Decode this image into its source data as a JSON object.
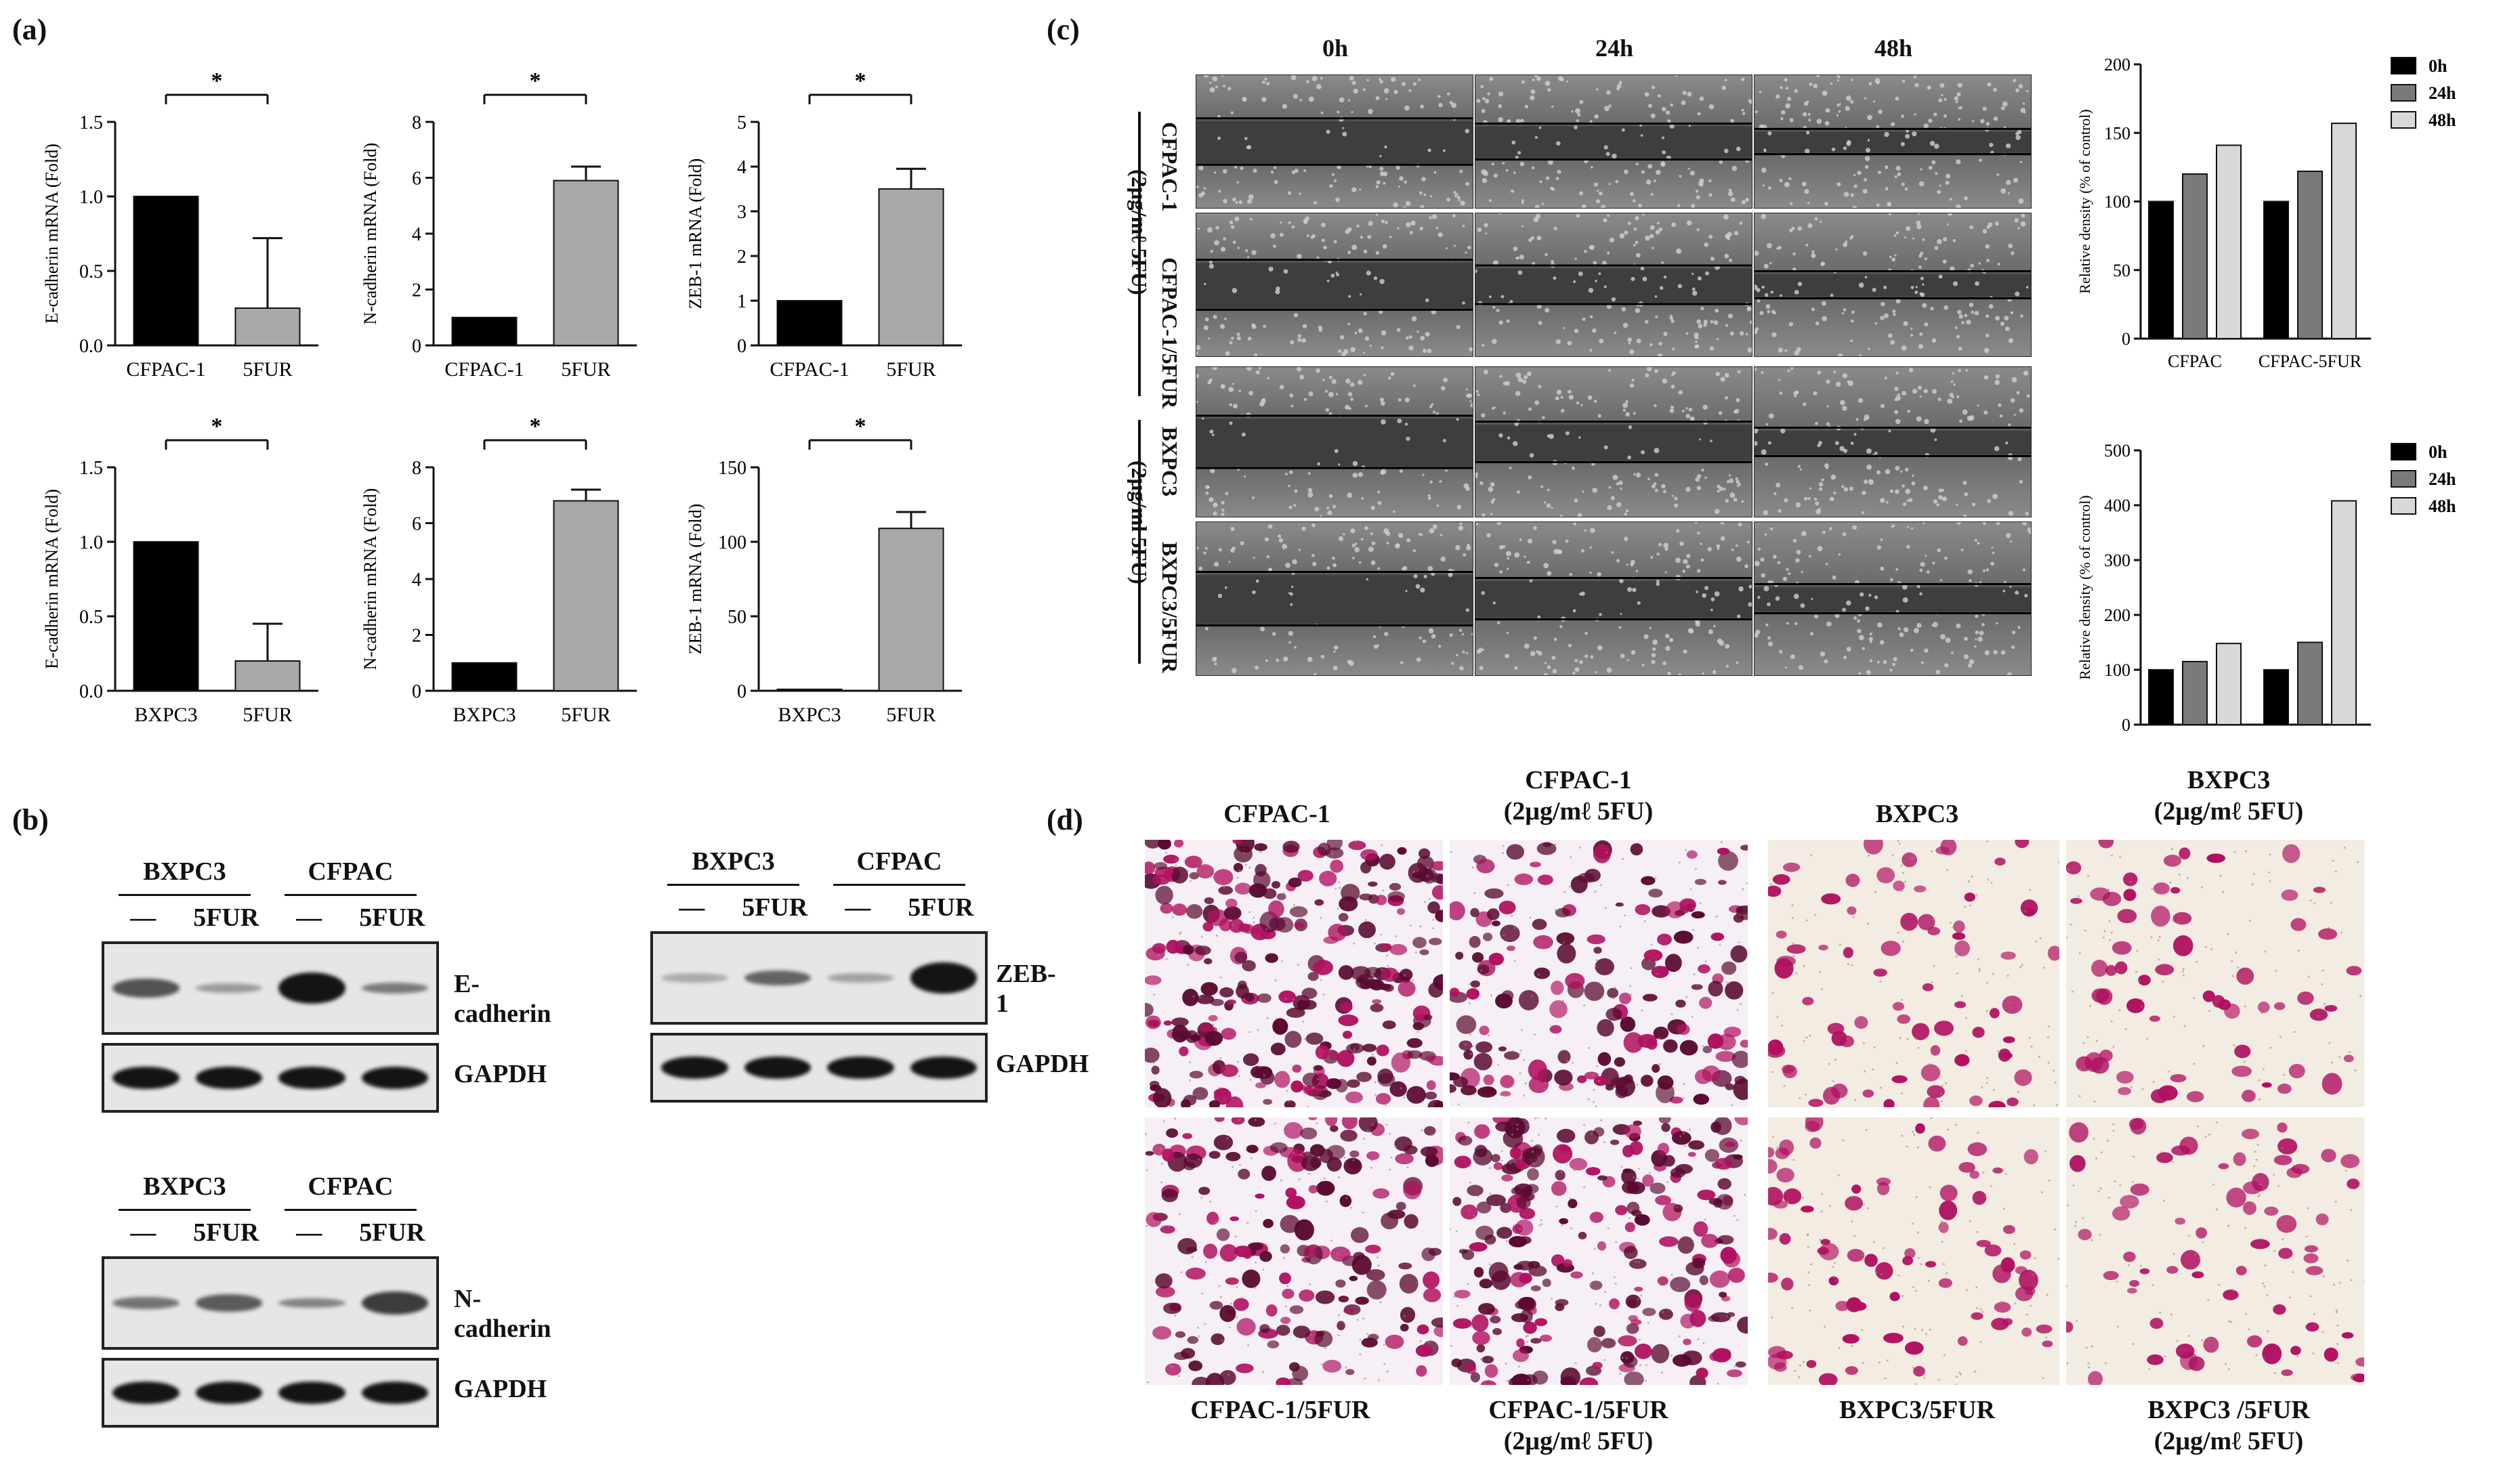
{
  "panels": {
    "a": "(a)",
    "b": "(b)",
    "c": "(c)",
    "d": "(d)"
  },
  "colors": {
    "black_bar": "#000000",
    "grey_bar": "#a8a8a8",
    "mid_grey": "#7a7a7a",
    "light_grey": "#d8d8d8",
    "stain": "#b01060",
    "stain_dark": "#5a0a30"
  },
  "panel_a": {
    "charts": [
      {
        "ylabel": "E-cadherin mRNA (Fold)",
        "categories": [
          "CFPAC-1",
          "5FUR"
        ],
        "ticks": [
          "0.0",
          "0.5",
          "1.0",
          "1.5"
        ],
        "star": "*"
      },
      {
        "ylabel": "N-cadherin mRNA (Fold)",
        "categories": [
          "CFPAC-1",
          "5FUR"
        ],
        "ticks": [
          "0",
          "2",
          "4",
          "6",
          "8"
        ],
        "star": "*"
      },
      {
        "ylabel": "ZEB-1 mRNA (Fold)",
        "categories": [
          "CFPAC-1",
          "5FUR"
        ],
        "ticks": [
          "0",
          "1",
          "2",
          "3",
          "4",
          "5"
        ],
        "star": "*"
      },
      {
        "ylabel": "E-cadherin mRNA (Fold)",
        "categories": [
          "BXPC3",
          "5FUR"
        ],
        "ticks": [
          "0.0",
          "0.5",
          "1.0",
          "1.5"
        ],
        "star": "*"
      },
      {
        "ylabel": "N-cadherin mRNA (Fold)",
        "categories": [
          "BXPC3",
          "5FUR"
        ],
        "ticks": [
          "0",
          "2",
          "4",
          "6",
          "8"
        ],
        "star": "*"
      },
      {
        "ylabel": "ZEB-1 mRNA (Fold)",
        "categories": [
          "BXPC3",
          "5FUR"
        ],
        "ticks": [
          "0",
          "50",
          "100",
          "150"
        ],
        "star": "*"
      }
    ]
  },
  "chart_data": [
    {
      "type": "bar",
      "categories": [
        "CFPAC-1",
        "5FUR"
      ],
      "values": [
        1.0,
        0.25
      ],
      "errors": [
        0,
        0.47
      ],
      "ylabel": "E-cadherin mRNA (Fold)",
      "ylim": [
        0,
        1.5
      ],
      "colors": [
        "#000000",
        "#a8a8a8"
      ]
    },
    {
      "type": "bar",
      "categories": [
        "CFPAC-1",
        "5FUR"
      ],
      "values": [
        1.0,
        5.9
      ],
      "errors": [
        0,
        0.5
      ],
      "ylabel": "N-cadherin mRNA (Fold)",
      "ylim": [
        0,
        8
      ],
      "colors": [
        "#000000",
        "#a8a8a8"
      ]
    },
    {
      "type": "bar",
      "categories": [
        "CFPAC-1",
        "5FUR"
      ],
      "values": [
        1.0,
        3.5
      ],
      "errors": [
        0,
        0.45
      ],
      "ylabel": "ZEB-1 mRNA (Fold)",
      "ylim": [
        0,
        5
      ],
      "colors": [
        "#000000",
        "#a8a8a8"
      ]
    },
    {
      "type": "bar",
      "categories": [
        "BXPC3",
        "5FUR"
      ],
      "values": [
        1.0,
        0.2
      ],
      "errors": [
        0,
        0.25
      ],
      "ylabel": "E-cadherin mRNA (Fold)",
      "ylim": [
        0,
        1.5
      ],
      "colors": [
        "#000000",
        "#a8a8a8"
      ]
    },
    {
      "type": "bar",
      "categories": [
        "BXPC3",
        "5FUR"
      ],
      "values": [
        1.0,
        6.8
      ],
      "errors": [
        0,
        0.4
      ],
      "ylabel": "N-cadherin mRNA (Fold)",
      "ylim": [
        0,
        8
      ],
      "colors": [
        "#000000",
        "#a8a8a8"
      ]
    },
    {
      "type": "bar",
      "categories": [
        "BXPC3",
        "5FUR"
      ],
      "values": [
        1.0,
        109
      ],
      "errors": [
        0,
        11
      ],
      "ylabel": "ZEB-1 mRNA (Fold)",
      "ylim": [
        0,
        150
      ],
      "colors": [
        "#000000",
        "#a8a8a8"
      ]
    },
    {
      "type": "bar",
      "categories": [
        "CFPAC",
        "CFPAC-5FUR"
      ],
      "series": [
        {
          "name": "0h",
          "values": [
            100,
            100
          ]
        },
        {
          "name": "24h",
          "values": [
            120,
            122
          ]
        },
        {
          "name": "48h",
          "values": [
            141,
            157
          ]
        }
      ],
      "ylabel": "Relative density (% of control)",
      "ylim": [
        0,
        200
      ],
      "ticks": [
        "0",
        "50",
        "100",
        "150",
        "200"
      ],
      "legend": "top-right"
    },
    {
      "type": "bar",
      "categories": [
        "BXPC3",
        "BXPC3-5FUR"
      ],
      "series": [
        {
          "name": "0h",
          "values": [
            100,
            100
          ]
        },
        {
          "name": "24h",
          "values": [
            115,
            150
          ]
        },
        {
          "name": "48h",
          "values": [
            148,
            408
          ]
        }
      ],
      "ylabel": "Relative density (% of control)",
      "ylim": [
        0,
        500
      ],
      "ticks": [
        "0",
        "100",
        "200",
        "300",
        "400",
        "500"
      ],
      "legend": "top-right"
    }
  ],
  "panel_b": {
    "blot1": {
      "groups": [
        "BXPC3",
        "CFPAC"
      ],
      "lanes": [
        "—",
        "5FUR",
        "—",
        "5FUR"
      ],
      "targets": [
        "E-cadherin",
        "GAPDH"
      ]
    },
    "blot2": {
      "groups": [
        "BXPC3",
        "CFPAC"
      ],
      "lanes": [
        "—",
        "5FUR",
        "—",
        "5FUR"
      ],
      "targets": [
        "N-cadherin",
        "GAPDH"
      ]
    },
    "blot3": {
      "groups": [
        "BXPC3",
        "CFPAC"
      ],
      "lanes": [
        "—",
        "5FUR",
        "—",
        "5FUR"
      ],
      "targets": [
        "ZEB-1",
        "GAPDH"
      ]
    }
  },
  "panel_c": {
    "times": [
      "0h",
      "24h",
      "48h"
    ],
    "group1_label": "(2μg/mℓ 5FU)",
    "group2_label": "(2μg/ml 5FU)",
    "rows": [
      "CFPAC-1",
      "CFPAC-1/5FUR",
      "BXPC3",
      "BXPC3/5FUR"
    ],
    "legend": [
      "0h",
      "24h",
      "48h"
    ]
  },
  "panel_d": {
    "top": [
      "CFPAC-1",
      "CFPAC-1\n(2μg/mℓ 5FU)",
      "BXPC3",
      "BXPC3\n(2μg/mℓ 5FU)"
    ],
    "bottom": [
      "CFPAC-1/5FUR",
      "CFPAC-1/5FUR\n(2μg/mℓ 5FU)",
      "BXPC3/5FUR",
      "BXPC3 /5FUR\n(2μg/mℓ 5FU)"
    ]
  }
}
